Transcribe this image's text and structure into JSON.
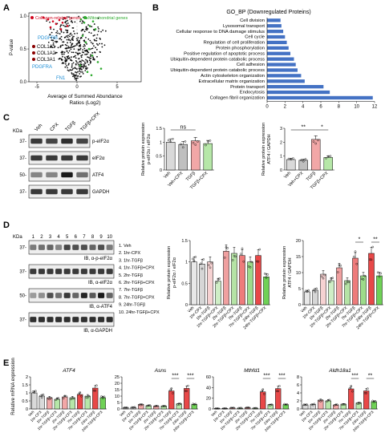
{
  "panels": [
    "A",
    "B",
    "C",
    "D",
    "E"
  ],
  "panel_a": {
    "legend_collagen": "Collagen-related genes",
    "legend_mito": "Mitochondrial genes",
    "ylabel": "P-value",
    "xlabel_line1": "Average of Summed Abundance",
    "xlabel_line2": "Ratios (Log2)",
    "genes": [
      "PDGFRB",
      "COL1A1",
      "COL1A2",
      "COL3A1",
      "PDGFRA",
      "FN1"
    ],
    "colors": {
      "collagen": "#d0021b",
      "mito": "#2eaa2e",
      "blue": "#1f8fd6",
      "black": "#111111",
      "dark_red": "#8b0000"
    }
  },
  "chart_data": [
    {
      "type": "scatter",
      "panel": "A",
      "ylabel": "P-value",
      "xlabel": "Average of Summed Abundance Ratios (Log2)",
      "xticks": [
        -5,
        0,
        5
      ],
      "yticks": [
        0.0,
        0.5,
        1.0
      ],
      "series": [
        {
          "name": "Collagen-related genes",
          "x": [
            -4.2,
            -3.6,
            -3.0,
            -2.6,
            -2.2,
            -1.8,
            -1.5,
            -1.2,
            -3.3,
            -2.0
          ],
          "y": [
            0.98,
            0.95,
            0.92,
            0.88,
            0.94,
            0.9,
            0.97,
            0.85,
            0.83,
            0.8
          ]
        },
        {
          "name": "Mitochondrial genes",
          "x": [
            0.5,
            0.9,
            1.2,
            1.6,
            2.0,
            2.3,
            0.7,
            1.1,
            1.5,
            1.9,
            2.6,
            3.0,
            0.4,
            1.3,
            1.8
          ],
          "y": [
            0.95,
            0.9,
            0.97,
            0.85,
            0.92,
            0.8,
            0.7,
            0.6,
            0.5,
            0.4,
            0.3,
            0.2,
            0.25,
            0.15,
            0.1
          ]
        }
      ]
    },
    {
      "type": "bar",
      "panel": "B",
      "title": "GO_BP (Downregulated Proteins)",
      "categories": [
        "Cell division",
        "Lysosomal transport",
        "Cellular response to DNA damage stimulus",
        "Cell cycle",
        "Regulation of cell proliferation",
        "Protein phosphorylation",
        "Positive regulation of apoptotic process",
        "Ubiquitin-dependent protein catabolic process",
        "Cell adhesion",
        "Ubiquitin-dependent protein catabolic process",
        "Actin cytoskeleton organization",
        "Extracellular matrix organization",
        "Protein transport",
        "Endocytosis",
        "Collagen fibril organization"
      ],
      "values": [
        1.5,
        1.6,
        1.8,
        2.0,
        2.2,
        2.4,
        2.6,
        3.0,
        3.2,
        3.4,
        3.8,
        4.2,
        6.3,
        7.0,
        11.8
      ],
      "xticks": [
        0,
        2,
        4,
        6,
        8,
        10,
        12
      ],
      "xlim": [
        0,
        12
      ]
    },
    {
      "type": "bar",
      "panel": "C-left",
      "ylabel": "Relative protein expression p-eIF2α / eIF2α",
      "categories": [
        "Veh",
        "Veh+CPX",
        "TGFβ",
        "TGFβ+CPX"
      ],
      "values": [
        1.0,
        0.92,
        1.05,
        0.95
      ],
      "yticks": [
        0.0,
        0.5,
        1.0,
        1.5
      ],
      "ylim": [
        0,
        1.5
      ],
      "sig": [
        {
          "from": 0,
          "to": 2,
          "label": "ns"
        }
      ]
    },
    {
      "type": "bar",
      "panel": "C-right",
      "ylabel": "Relative protein expression ATF4 / GAPDH",
      "categories": [
        "Veh",
        "Veh+CPX",
        "TGFβ",
        "TGFβ+CPX"
      ],
      "values": [
        0.75,
        0.7,
        2.2,
        0.9
      ],
      "yticks": [
        0,
        1,
        2,
        3
      ],
      "ylim": [
        0,
        3
      ],
      "sig": [
        {
          "from": 0,
          "to": 2,
          "label": "**"
        },
        {
          "from": 2,
          "to": 3,
          "label": "*"
        }
      ]
    },
    {
      "type": "bar",
      "panel": "D-left",
      "ylabel": "Relative protein expression p-eIF2α / eIF2α",
      "categories": [
        "Veh",
        "1hr-CPX",
        "1hr-TGFβ",
        "1hr-TGFβ+CPX",
        "2hr-TGFβ",
        "2hr-TGFβ+CPX",
        "7hr-TGFβ",
        "7hr-TGFβ+CPX",
        "24hr-TGFβ",
        "24hr-TGFβ+CPX"
      ],
      "values": [
        1.0,
        0.95,
        1.0,
        0.55,
        1.25,
        1.2,
        1.15,
        1.0,
        1.15,
        0.65
      ],
      "yticks": [
        0.0,
        0.5,
        1.0,
        1.5
      ],
      "ylim": [
        0,
        1.5
      ]
    },
    {
      "type": "bar",
      "panel": "D-right",
      "ylabel": "Relative protein expression ATF4 / GAPDH",
      "categories": [
        "Veh",
        "1hr-CPX",
        "1hr-TGFβ",
        "1hr-TGFβ+CPX",
        "2hr-TGFβ",
        "2hr-TGFβ+CPX",
        "7hr-TGFβ",
        "7hr-TGFβ+CPX",
        "24hr-TGFβ",
        "24hr-TGFβ+CPX"
      ],
      "values": [
        4,
        4.5,
        9.5,
        7.5,
        11.5,
        7.5,
        14.5,
        9,
        16,
        9
      ],
      "yticks": [
        0,
        5,
        10,
        15,
        20
      ],
      "ylim": [
        0,
        20
      ],
      "sig": [
        {
          "from": 6,
          "to": 7,
          "label": "*"
        },
        {
          "from": 8,
          "to": 9,
          "label": "**"
        }
      ]
    },
    {
      "type": "bar",
      "panel": "E",
      "ylabel": "Relative mRNA expression",
      "categories": [
        "Veh",
        "1hr-CPX",
        "1hr-TGFβ",
        "1hr-TGFβ+CPX",
        "2hr-TGFβ",
        "2hr-TGFβ+CPX",
        "7hr-TGFβ",
        "7hr-TGFβ+CPX",
        "24hr-TGFβ",
        "24hr-TGFβ+CPX"
      ],
      "series": [
        {
          "name": "ATF4",
          "values": [
            1.0,
            0.8,
            0.7,
            0.6,
            0.75,
            0.7,
            0.9,
            0.8,
            1.3,
            0.7
          ],
          "yticks": [
            0.0,
            0.5,
            1.0,
            1.5,
            2.0
          ],
          "ylim": [
            0,
            2.0
          ],
          "sig": []
        },
        {
          "name": "Asns",
          "values": [
            1.0,
            1.2,
            3.5,
            2.5,
            2.2,
            2.3,
            14,
            4,
            16,
            3.5
          ],
          "yticks": [
            0,
            5,
            10,
            15,
            20,
            25
          ],
          "ylim": [
            0,
            25
          ],
          "sig": [
            {
              "from": 6,
              "to": 7,
              "label": "***"
            },
            {
              "from": 8,
              "to": 9,
              "label": "***"
            }
          ]
        },
        {
          "name": "Mthfd1",
          "values": [
            1.0,
            1.1,
            2.0,
            1.5,
            2.5,
            1.5,
            32,
            8,
            38,
            8
          ],
          "yticks": [
            0,
            20,
            40,
            60
          ],
          "ylim": [
            0,
            60
          ],
          "sig": [
            {
              "from": 6,
              "to": 7,
              "label": "***"
            },
            {
              "from": 8,
              "to": 9,
              "label": "***"
            }
          ]
        },
        {
          "name": "Aldh18a1",
          "values": [
            1.0,
            1.1,
            2.2,
            2.0,
            1.0,
            1.2,
            5.0,
            1.5,
            4.5,
            1.8
          ],
          "yticks": [
            0,
            2,
            4,
            6,
            8
          ],
          "ylim": [
            0,
            8
          ],
          "sig": [
            {
              "from": 6,
              "to": 7,
              "label": "***"
            },
            {
              "from": 8,
              "to": 9,
              "label": "**"
            }
          ]
        }
      ]
    }
  ],
  "blots_c": {
    "kda_label": "KDa",
    "lanes": [
      "Veh",
      "CPX",
      "TGFβ",
      "TGFβ+CPX"
    ],
    "rows": [
      {
        "kda": "37-",
        "label": "p-eIF2α",
        "bands": [
          0.8,
          0.75,
          0.85,
          0.75
        ]
      },
      {
        "kda": "37-",
        "label": "eIF2α",
        "bands": [
          0.8,
          0.8,
          0.8,
          0.8
        ]
      },
      {
        "kda": "50-",
        "label": "ATF4",
        "bands": [
          0.45,
          0.45,
          0.95,
          0.55
        ]
      },
      {
        "kda": "37-",
        "label": "GAPDH",
        "bands": [
          0.8,
          0.8,
          0.8,
          0.8
        ]
      }
    ]
  },
  "blots_d": {
    "kda_label": "KDa",
    "lane_numbers": [
      "1",
      "2",
      "3",
      "4",
      "5",
      "6",
      "7",
      "8",
      "9",
      "10"
    ],
    "rows": [
      {
        "kda": "37-",
        "label": "IB, α-p-eIF2α",
        "bands": [
          0.5,
          0.55,
          0.6,
          0.45,
          0.75,
          0.7,
          0.7,
          0.6,
          0.7,
          0.5
        ]
      },
      {
        "kda": "37-",
        "label": "IB, α-eIF2α",
        "bands": [
          0.8,
          0.8,
          0.8,
          0.8,
          0.8,
          0.8,
          0.8,
          0.8,
          0.8,
          0.8
        ]
      },
      {
        "kda": "50-",
        "label": "IB, α-ATF4",
        "bands": [
          0.35,
          0.4,
          0.7,
          0.55,
          0.8,
          0.6,
          0.9,
          0.65,
          0.95,
          0.6
        ]
      },
      {
        "kda": "37-",
        "label": "IB, α-GAPDH",
        "bands": [
          0.85,
          0.85,
          0.85,
          0.85,
          0.85,
          0.85,
          0.85,
          0.85,
          0.85,
          0.85
        ]
      }
    ],
    "legend": [
      "1. Veh",
      "2. 1hr-CPX",
      "3. 1hr-TGFβ",
      "4. 1hr-TGFβ+CPX",
      "5. 2hr-TGFβ",
      "6. 2hr-TGFβ+CPX",
      "7. 7hr-TGFβ",
      "8. 7hr-TGFβ+CPX",
      "9. 24hr-TGFβ",
      "10. 24hr-TGFβ+CPX"
    ]
  },
  "colors": {
    "veh": "#d9d9d9",
    "cpx": "#bfbfbf",
    "tgfb": "#f2a7a7",
    "tgfb_cpx": "#b6e7a8",
    "d_bars": [
      "#e8e8e8",
      "#d6d6d6",
      "#f6d2d2",
      "#cfeec6",
      "#f0a0a0",
      "#b5e3a5",
      "#ee7b7b",
      "#9ddb8a",
      "#e84848",
      "#6fd156"
    ],
    "blue_bar": "#4472c4",
    "blot_bg": "#eeeeee"
  }
}
